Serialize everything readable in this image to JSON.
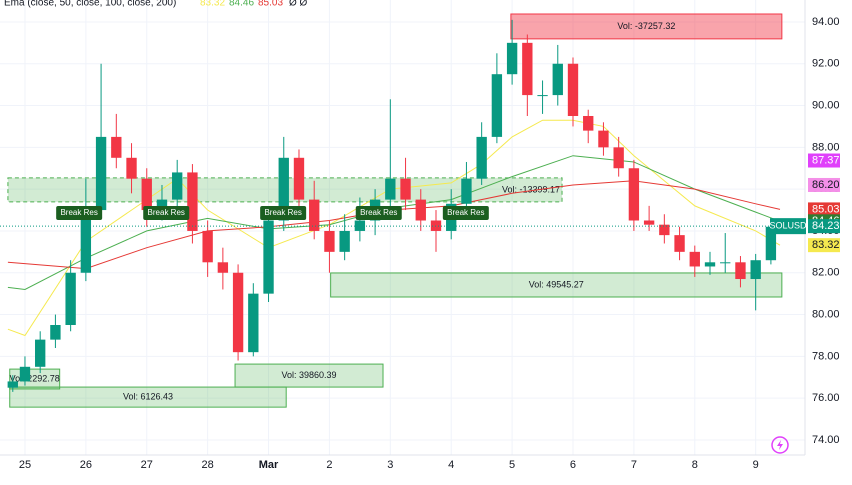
{
  "chart_data": {
    "type": "candlestick",
    "symbol": "SOLUSD",
    "legend": {
      "title": "Ema (close, 50, close, 100, close, 200)",
      "suffix": "Ø Ø"
    },
    "xlim": [
      -0.41,
      12.81
    ],
    "ylim": [
      73.28,
      95.05
    ],
    "xticks": [
      {
        "value": 0,
        "label": "25"
      },
      {
        "value": 1,
        "label": "26"
      },
      {
        "value": 2,
        "label": "27"
      },
      {
        "value": 3,
        "label": "28"
      },
      {
        "value": 4,
        "label": "Mar"
      },
      {
        "value": 5,
        "label": "2"
      },
      {
        "value": 6,
        "label": "3"
      },
      {
        "value": 7,
        "label": "4"
      },
      {
        "value": 8,
        "label": "5"
      },
      {
        "value": 9,
        "label": "6"
      },
      {
        "value": 10,
        "label": "7"
      },
      {
        "value": 11,
        "label": "8"
      },
      {
        "value": 12,
        "label": "9"
      }
    ],
    "yticks": [
      {
        "value": 74,
        "label": "74.00"
      },
      {
        "value": 76,
        "label": "76.00"
      },
      {
        "value": 78,
        "label": "78.00"
      },
      {
        "value": 80,
        "label": "80.00"
      },
      {
        "value": 82,
        "label": "82.00"
      },
      {
        "value": 84,
        "label": "84.00"
      },
      {
        "value": 86,
        "label": "86.00"
      },
      {
        "value": 88,
        "label": "88.00"
      },
      {
        "value": 90,
        "label": "90.00"
      },
      {
        "value": 92,
        "label": "92.00"
      },
      {
        "value": 94,
        "label": "94.00"
      }
    ],
    "up_color": "#089981",
    "down_color": "#f23645",
    "x": [
      -0.2,
      0,
      0.25,
      0.5,
      0.75,
      1,
      1.25,
      1.5,
      1.75,
      2,
      2.25,
      2.5,
      2.75,
      3,
      3.25,
      3.5,
      3.75,
      4,
      4.25,
      4.5,
      4.75,
      5,
      5.25,
      5.5,
      5.75,
      6,
      6.25,
      6.5,
      6.75,
      7,
      7.25,
      7.5,
      7.75,
      8,
      8.25,
      8.5,
      8.75,
      9,
      9.25,
      9.5,
      9.75,
      10,
      10.25,
      10.5,
      10.75,
      11,
      11.25,
      11.5,
      11.75,
      12,
      12.25
    ],
    "open": [
      76.5,
      76.8,
      77.5,
      78.8,
      79.5,
      82,
      85,
      88.5,
      87.5,
      86.5,
      85,
      85.5,
      86.8,
      84,
      82.5,
      82,
      78.2,
      81,
      84.5,
      87.5,
      85.5,
      84,
      83,
      84,
      84.5,
      85.5,
      86.5,
      85.5,
      84.5,
      84,
      85.3,
      86.5,
      88.5,
      91.5,
      93,
      90.5,
      90.5,
      92,
      89.5,
      88.8,
      88,
      87,
      84.5,
      84.3,
      83.8,
      83,
      82.3,
      82.5,
      82.5,
      81.7,
      82.6
    ],
    "high": [
      77.1,
      78,
      79.2,
      80,
      82.6,
      86.5,
      92,
      89.6,
      88.2,
      87,
      86.2,
      87.4,
      87.2,
      84.5,
      83.2,
      82.4,
      81.5,
      85,
      88.5,
      87.9,
      86.4,
      84.5,
      84.8,
      85.6,
      86,
      90.3,
      87.5,
      86,
      85,
      86,
      87.3,
      89.2,
      92.5,
      94.1,
      93.4,
      91.2,
      92.9,
      92.3,
      89.8,
      89.2,
      88.5,
      87.4,
      85.2,
      84.8,
      84.2,
      83.3,
      83,
      83.9,
      82.8,
      82.9,
      84.4
    ],
    "low": [
      76.3,
      76.6,
      77.2,
      78.4,
      79.2,
      81.6,
      84.6,
      87,
      85.8,
      84.2,
      84.5,
      85,
      83.4,
      81.8,
      81.2,
      77.8,
      78,
      80.6,
      84,
      85,
      83.6,
      82,
      82.6,
      83.5,
      83.8,
      85,
      85,
      84,
      83,
      83.6,
      85,
      86.2,
      88.2,
      91,
      89.5,
      89.6,
      90,
      89,
      88.2,
      87.6,
      86.6,
      84,
      84,
      83.4,
      82.6,
      81.8,
      81.9,
      82,
      81.3,
      80.2,
      82.4
    ],
    "close": [
      76.8,
      77.5,
      78.8,
      79.5,
      82,
      85,
      88.5,
      87.5,
      86.5,
      85,
      85.5,
      86.8,
      84,
      82.5,
      82,
      78.2,
      81,
      84.5,
      87.5,
      85.5,
      84,
      83,
      84,
      84.5,
      85.5,
      86.5,
      85.5,
      84.5,
      84,
      85.3,
      86.5,
      88.5,
      91.5,
      93,
      90.5,
      90.5,
      92,
      89.5,
      88.8,
      88,
      87,
      84.5,
      84.3,
      83.8,
      83,
      82.3,
      82.5,
      82.5,
      81.7,
      82.6,
      84.2
    ],
    "series": [
      {
        "name": "EMA 50",
        "color": "#f5e94f",
        "x": [
          -0.28,
          0,
          1,
          2,
          2.5,
          3,
          4,
          5,
          6,
          7,
          7.5,
          8,
          8.5,
          9,
          9.5,
          10,
          11,
          12,
          12.4
        ],
        "values": [
          79.3,
          79,
          83.5,
          85.5,
          86.5,
          85,
          83.2,
          84.3,
          86,
          86.3,
          87.2,
          88.5,
          89.3,
          89.3,
          89,
          87.6,
          85.2,
          84,
          83.32
        ],
        "last": {
          "value": 83.32,
          "label": "83.32"
        }
      },
      {
        "name": "EMA 100",
        "color": "#4caf50",
        "x": [
          -0.28,
          0,
          1,
          2,
          3,
          4,
          5,
          6,
          7,
          8,
          9,
          10,
          11,
          12,
          12.4
        ],
        "values": [
          81.3,
          81.2,
          82.7,
          84,
          84.6,
          84.1,
          84.3,
          85.1,
          85.5,
          86.6,
          87.6,
          87.3,
          86,
          84.9,
          84.46
        ],
        "last": {
          "value": 84.46,
          "label": "84.46"
        }
      },
      {
        "name": "EMA 200",
        "color": "#e53935",
        "x": [
          -0.28,
          1,
          2,
          3,
          4,
          5,
          6,
          7,
          8,
          9,
          10,
          11,
          12,
          12.4
        ],
        "values": [
          82.5,
          82.2,
          83.2,
          84,
          84.2,
          84.5,
          85,
          85.2,
          85.8,
          86.2,
          86.4,
          86,
          85.3,
          85.03
        ],
        "last": {
          "value": 85.03,
          "label": "85.03"
        }
      }
    ],
    "price_tags": [
      {
        "value": 87.37,
        "label": "87.37",
        "color": "#e040fb"
      },
      {
        "value": 86.2,
        "label": "86.20",
        "color": "#f48fe8"
      },
      {
        "value": 85.03,
        "label": "85.03",
        "color": "#e53935"
      },
      {
        "value": 84.46,
        "label": "84.46",
        "color": "#2e7d32"
      },
      {
        "value": 84.23,
        "label": "84.23",
        "color": "#089981"
      },
      {
        "value": 83.32,
        "label": "83.32",
        "color": "#f5e94f"
      }
    ],
    "zones": [
      {
        "x": [
          7.98,
          12.43
        ],
        "y": [
          93.19,
          94.38
        ],
        "label": "Vol: -37257.32",
        "color": "red"
      },
      {
        "x": [
          -0.28,
          8.82
        ],
        "y": [
          85.39,
          86.54
        ],
        "label": "Vol: -13399.17",
        "color": "green"
      },
      {
        "x": [
          5.02,
          12.43
        ],
        "y": [
          80.84,
          81.99
        ],
        "label": "Vol: 49545.27",
        "color": "green"
      },
      {
        "x": [
          3.45,
          5.88
        ],
        "y": [
          76.53,
          77.63
        ],
        "label": "Vol: 39860.39",
        "color": "green"
      },
      {
        "x": [
          -0.25,
          4.29
        ],
        "y": [
          75.57,
          76.53
        ],
        "label": "Vol: 6126.43",
        "color": "green"
      },
      {
        "x": [
          -0.25,
          0.57
        ],
        "y": [
          76.44,
          77.39
        ],
        "label": "Vol: 2292.78",
        "color": "green"
      }
    ],
    "breaks": [
      {
        "x": 0.89,
        "y": 84.86,
        "label": "Break Res"
      },
      {
        "x": 2.32,
        "y": 84.86,
        "label": "Break Res"
      },
      {
        "x": 4.24,
        "y": 84.86,
        "label": "Break Res"
      },
      {
        "x": 5.81,
        "y": 84.86,
        "label": "Break Res"
      },
      {
        "x": 7.24,
        "y": 84.86,
        "label": "Break Res"
      }
    ]
  }
}
